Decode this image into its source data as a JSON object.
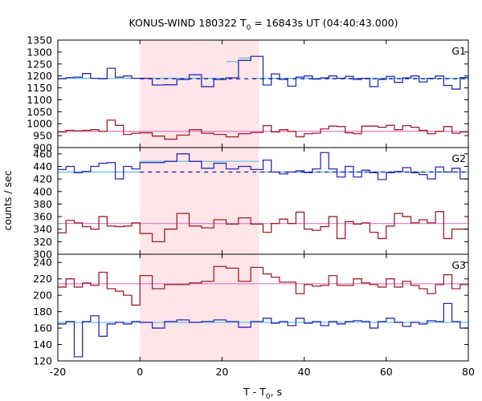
{
  "chart_data": {
    "type": "line",
    "title": {
      "main": "KONUS-WIND 180322 T",
      "sub": "0",
      "rest": " = 16843s UT (04:40:43.000)"
    },
    "xlabel": {
      "main": "T - T",
      "sub": "0",
      "rest": ", s"
    },
    "ylabel": "counts / sec",
    "xlim": [
      -20,
      80
    ],
    "xticks": [
      -20,
      0,
      20,
      40,
      60,
      80
    ],
    "shaded_interval": [
      0,
      29
    ],
    "colors": {
      "upper_series": "#2b2bb3",
      "lower_series": "#a0202a",
      "upper_fit": "#5bbde8",
      "lower_fit": "#e07ad0",
      "shade": "#fde5e8"
    },
    "panels": [
      {
        "name": "G1",
        "ylim": [
          900,
          1350
        ],
        "yticks": [
          900,
          950,
          1000,
          1050,
          1100,
          1150,
          1200,
          1250,
          1300,
          1350
        ],
        "bin_edges": [
          -20,
          -18,
          -16,
          -14,
          -12,
          -10,
          -8,
          -6,
          -4,
          -2,
          0,
          3,
          6,
          9,
          12,
          15,
          18,
          21,
          24,
          27,
          30,
          32,
          34,
          36,
          38,
          40,
          42,
          44,
          46,
          48,
          50,
          52,
          54,
          56,
          58,
          60,
          62,
          64,
          66,
          68,
          70,
          72,
          74,
          76,
          78,
          80
        ],
        "series": [
          {
            "role": "upper",
            "values": [
              1188,
              1193,
              1195,
              1210,
              1190,
              1188,
              1232,
              1195,
              1200,
              1190,
              1190,
              1162,
              1163,
              1185,
              1205,
              1155,
              1185,
              1192,
              1265,
              1282,
              1162,
              1208,
              1185,
              1157,
              1195,
              1200,
              1187,
              1192,
              1200,
              1190,
              1198,
              1185,
              1190,
              1155,
              1185,
              1198,
              1173,
              1192,
              1200,
              1175,
              1190,
              1200,
              1160,
              1145,
              1193
            ]
          },
          {
            "role": "lower",
            "values": [
              965,
              972,
              970,
              972,
              975,
              968,
              1015,
              993,
              955,
              960,
              962,
              948,
              935,
              952,
              975,
              960,
              955,
              945,
              958,
              963,
              992,
              965,
              975,
              968,
              945,
              958,
              960,
              978,
              990,
              988,
              962,
              958,
              990,
              990,
              985,
              993,
              975,
              992,
              985,
              972,
              958,
              968,
              988,
              960,
              965
            ]
          }
        ],
        "fits": [
          {
            "role": "upper",
            "segments": [
              [
                -20,
                0,
                1190,
                1190
              ],
              [
                0,
                21,
                1190,
                1190
              ],
              [
                21,
                24,
                1260,
                1260
              ],
              [
                24,
                27,
                1275,
                1275
              ],
              [
                27,
                29,
                1190,
                1190
              ],
              [
                29,
                80,
                1190,
                1190
              ]
            ]
          },
          {
            "role": "lower",
            "segments": [
              [
                -20,
                80,
                968,
                968
              ]
            ]
          }
        ],
        "background": {
          "from": 0,
          "to": 80,
          "value": 1188
        }
      },
      {
        "name": "G2",
        "ylim": [
          300,
          470
        ],
        "yticks": [
          300,
          320,
          340,
          360,
          380,
          400,
          420,
          440,
          460
        ],
        "bin_edges": [
          -20,
          -18,
          -16,
          -14,
          -12,
          -10,
          -8,
          -6,
          -4,
          -2,
          0,
          3,
          6,
          9,
          12,
          15,
          18,
          21,
          24,
          27,
          30,
          32,
          34,
          36,
          38,
          40,
          42,
          44,
          46,
          48,
          50,
          52,
          54,
          56,
          58,
          60,
          62,
          64,
          66,
          68,
          70,
          72,
          74,
          76,
          78,
          80
        ],
        "series": [
          {
            "role": "upper",
            "values": [
              435,
              440,
              430,
              432,
              440,
              445,
              446,
              420,
              440,
              436,
              446,
              446,
              448,
              460,
              448,
              437,
              445,
              436,
              440,
              435,
              450,
              431,
              428,
              431,
              433,
              430,
              436,
              462,
              436,
              423,
              440,
              423,
              434,
              430,
              419,
              430,
              432,
              438,
              430,
              427,
              420,
              439,
              431,
              437,
              420
            ]
          },
          {
            "role": "lower",
            "values": [
              334,
              354,
              350,
              344,
              340,
              360,
              345,
              344,
              345,
              350,
              333,
              320,
              340,
              365,
              345,
              342,
              355,
              348,
              358,
              348,
              335,
              349,
              356,
              349,
              367,
              340,
              338,
              344,
              360,
              325,
              352,
              348,
              350,
              335,
              325,
              345,
              365,
              360,
              350,
              355,
              350,
              368,
              325,
              340,
              340
            ]
          }
        ],
        "fits": [
          {
            "role": "upper",
            "segments": [
              [
                -20,
                0,
                431,
                431
              ],
              [
                0,
                29,
                448,
                448
              ],
              [
                29,
                80,
                431,
                431
              ]
            ]
          },
          {
            "role": "lower",
            "segments": [
              [
                -20,
                80,
                349,
                349
              ]
            ]
          }
        ],
        "background": {
          "from": 0,
          "to": 80,
          "value": 431
        }
      },
      {
        "name": "G3",
        "ylim": [
          120,
          250
        ],
        "yticks": [
          120,
          140,
          160,
          180,
          200,
          220,
          240
        ],
        "bin_edges": [
          -20,
          -18,
          -16,
          -14,
          -12,
          -10,
          -8,
          -6,
          -4,
          -2,
          0,
          3,
          6,
          9,
          12,
          15,
          18,
          21,
          24,
          27,
          30,
          32,
          34,
          36,
          38,
          40,
          42,
          44,
          46,
          48,
          50,
          52,
          54,
          56,
          58,
          60,
          62,
          64,
          66,
          68,
          70,
          72,
          74,
          76,
          78,
          80
        ],
        "series": [
          {
            "role": "upper",
            "values": [
              165,
              168,
              125,
              168,
              175,
              150,
              165,
              167,
              165,
              168,
              167,
              160,
              168,
              170,
              167,
              168,
              170,
              168,
              161,
              168,
              172,
              166,
              168,
              163,
              172,
              166,
              168,
              163,
              168,
              165,
              168,
              169,
              168,
              160,
              168,
              172,
              167,
              162,
              167,
              165,
              169,
              168,
              190,
              168,
              160
            ]
          },
          {
            "role": "lower",
            "values": [
              210,
              220,
              210,
              215,
              212,
              228,
              208,
              205,
              200,
              188,
              224,
              208,
              213,
              213,
              215,
              217,
              235,
              233,
              217,
              234,
              226,
              222,
              216,
              216,
              202,
              213,
              211,
              212,
              224,
              212,
              212,
              220,
              215,
              213,
              210,
              220,
              210,
              217,
              212,
              208,
              202,
              213,
              225,
              208,
              213
            ]
          }
        ],
        "fits": [
          {
            "role": "upper",
            "segments": [
              [
                -20,
                80,
                167,
                167
              ]
            ]
          },
          {
            "role": "lower",
            "segments": [
              [
                -20,
                80,
                214,
                214
              ]
            ]
          }
        ],
        "background": null
      }
    ]
  }
}
